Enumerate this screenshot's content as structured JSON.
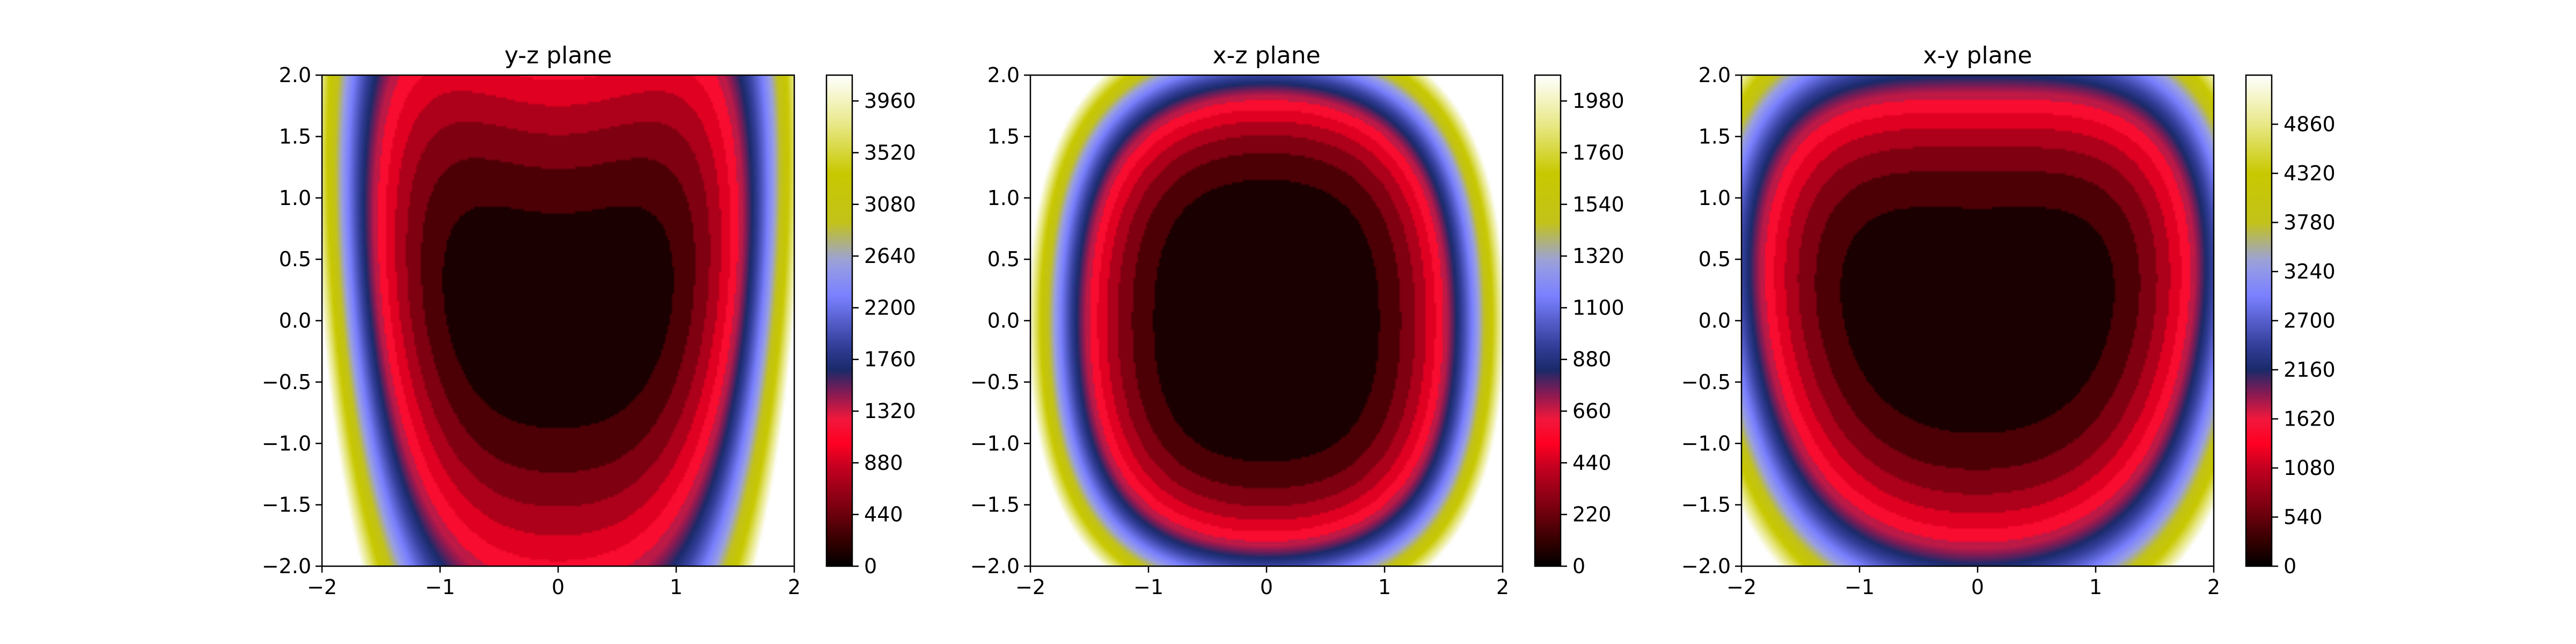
{
  "colormap": {
    "name": "gist_stern-like",
    "stops": [
      {
        "t": 0.0,
        "color": "#000000"
      },
      {
        "t": 0.05,
        "color": "#330000"
      },
      {
        "t": 0.12,
        "color": "#7a0010"
      },
      {
        "t": 0.2,
        "color": "#c20020"
      },
      {
        "t": 0.25,
        "color": "#ff0022"
      },
      {
        "t": 0.3,
        "color": "#f0183c"
      },
      {
        "t": 0.35,
        "color": "#8a1a52"
      },
      {
        "t": 0.4,
        "color": "#1a2a6a"
      },
      {
        "t": 0.45,
        "color": "#333f9a"
      },
      {
        "t": 0.55,
        "color": "#7a80ff"
      },
      {
        "t": 0.62,
        "color": "#9aa0e0"
      },
      {
        "t": 0.7,
        "color": "#c2c21a"
      },
      {
        "t": 0.8,
        "color": "#c8c800"
      },
      {
        "t": 0.9,
        "color": "#e8e888"
      },
      {
        "t": 1.0,
        "color": "#ffffff"
      }
    ]
  },
  "chart_data": [
    {
      "type": "heatmap",
      "title": "y-z plane",
      "func": "yz",
      "xlim": [
        -2,
        2
      ],
      "ylim": [
        -2,
        2
      ],
      "xticks": [
        "−2",
        "−1",
        "0",
        "1",
        "2"
      ],
      "yticks": [
        "−2.0",
        "−1.5",
        "−1.0",
        "−0.5",
        "0.0",
        "0.5",
        "1.0",
        "1.5",
        "2.0"
      ],
      "vmin": 0,
      "vmax": 4180,
      "colorbar_ticks": [
        0,
        440,
        880,
        1320,
        1760,
        2200,
        2640,
        3080,
        3520,
        3960
      ]
    },
    {
      "type": "heatmap",
      "title": "x-z plane",
      "func": "xz",
      "xlim": [
        -2,
        2
      ],
      "ylim": [
        -2,
        2
      ],
      "xticks": [
        "−2",
        "−1",
        "0",
        "1",
        "2"
      ],
      "yticks": [
        "−2.0",
        "−1.5",
        "−1.0",
        "−0.5",
        "0.0",
        "0.5",
        "1.0",
        "1.5",
        "2.0"
      ],
      "vmin": 0,
      "vmax": 2090,
      "colorbar_ticks": [
        0,
        220,
        440,
        660,
        880,
        1100,
        1320,
        1540,
        1760,
        1980
      ]
    },
    {
      "type": "heatmap",
      "title": "x-y plane",
      "func": "xy",
      "xlim": [
        -2,
        2
      ],
      "ylim": [
        -2,
        2
      ],
      "xticks": [
        "−2",
        "−1",
        "0",
        "1",
        "2"
      ],
      "yticks": [
        "−2.0",
        "−1.5",
        "−1.0",
        "−0.5",
        "0.0",
        "0.5",
        "1.0",
        "1.5",
        "2.0"
      ],
      "vmin": 0,
      "vmax": 5400,
      "colorbar_ticks": [
        0,
        540,
        1080,
        1620,
        2160,
        2700,
        3240,
        3780,
        4320,
        4860
      ]
    }
  ]
}
